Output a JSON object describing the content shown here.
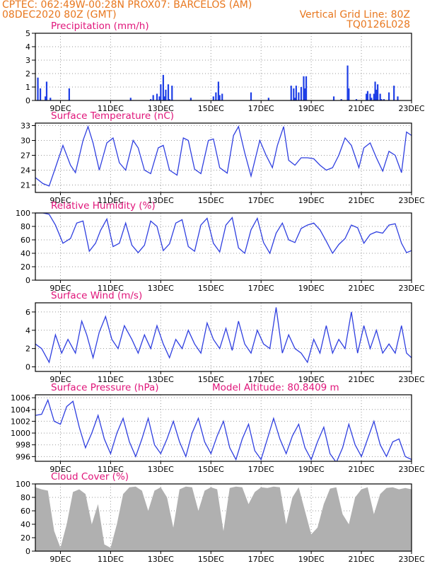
{
  "header": {
    "line1_left": "CPTEC:  062:49W-00:28N  PROX07: BARCELOS (AM)",
    "line2_left": "08DEC2020 80Z (GMT)",
    "line2_right": "Vertical Grid Line: 80Z",
    "line3_right": "TQ0126L028",
    "color": "#e8771e"
  },
  "title_color": "#e0157a",
  "line_color": "#2f3fe0",
  "bar_color": "#1f3fe6",
  "cloud_color": "#b0b0b0",
  "x_tick_labels": [
    "9DEC",
    "11DEC",
    "13DEC",
    "15DEC",
    "17DEC",
    "19DEC",
    "21DEC",
    "23DEC"
  ],
  "chart_data": [
    {
      "type": "bar",
      "title": "Precipitation (mm/h)",
      "ylim": [
        0,
        5
      ],
      "yticks": [
        0,
        1,
        2,
        3,
        4,
        5
      ],
      "x": [
        8.1,
        8.2,
        8.4,
        8.45,
        8.6,
        9.35,
        11.8,
        12.6,
        12.7,
        12.85,
        12.95,
        13.0,
        13.1,
        13.15,
        13.2,
        13.3,
        13.35,
        13.45,
        14.2,
        15.1,
        15.2,
        15.3,
        15.35,
        15.45,
        16.6,
        17.3,
        18.2,
        18.3,
        18.35,
        18.4,
        18.5,
        18.6,
        18.7,
        18.75,
        18.8,
        19.9,
        20.2,
        20.45,
        20.5,
        20.8,
        21.2,
        21.25,
        21.35,
        21.4,
        21.5,
        21.55,
        21.6,
        21.65,
        21.75,
        21.8,
        21.9,
        22.1,
        22.3,
        22.45
      ],
      "values": [
        1.7,
        0.9,
        0.3,
        1.4,
        0.2,
        0.9,
        0.2,
        0.1,
        0.4,
        0.5,
        0.3,
        1.2,
        1.9,
        0.3,
        0.8,
        1.2,
        0.1,
        1.1,
        0.2,
        0.3,
        0.6,
        1.4,
        0.4,
        0.5,
        0.6,
        0.2,
        1.1,
        0.9,
        0.2,
        1.1,
        0.6,
        1.0,
        1.8,
        0.9,
        1.8,
        0.3,
        0.1,
        2.6,
        0.9,
        0.1,
        0.5,
        0.7,
        0.5,
        0.2,
        0.5,
        1.4,
        0.8,
        1.2,
        0.5,
        0.1,
        0.1,
        0.6,
        1.1,
        0.3
      ]
    },
    {
      "type": "line",
      "title": "Surface Temperature (nC)",
      "ylim": [
        19.5,
        33.5
      ],
      "yticks": [
        21,
        24,
        27,
        30,
        33
      ],
      "x": [
        8.0,
        8.3,
        8.55,
        8.8,
        9.1,
        9.4,
        9.6,
        9.9,
        10.1,
        10.3,
        10.55,
        10.85,
        11.1,
        11.35,
        11.6,
        11.9,
        12.1,
        12.35,
        12.6,
        12.9,
        13.1,
        13.35,
        13.65,
        13.9,
        14.1,
        14.35,
        14.6,
        14.9,
        15.1,
        15.35,
        15.65,
        15.9,
        16.1,
        16.35,
        16.6,
        16.95,
        17.2,
        17.45,
        17.65,
        17.9,
        18.1,
        18.35,
        18.6,
        18.85,
        19.1,
        19.35,
        19.6,
        19.85,
        20.1,
        20.35,
        20.6,
        20.9,
        21.1,
        21.35,
        21.6,
        21.85,
        22.1,
        22.35,
        22.6,
        22.8,
        23.0
      ],
      "values": [
        22.5,
        21.3,
        20.8,
        24.5,
        29.0,
        25.0,
        23.5,
        30.0,
        32.8,
        29.5,
        24.0,
        29.5,
        30.5,
        25.5,
        24.0,
        30.0,
        28.5,
        24.0,
        23.3,
        28.5,
        29.0,
        24.0,
        23.0,
        30.5,
        30.0,
        24.2,
        23.3,
        30.0,
        30.3,
        24.5,
        23.4,
        31.0,
        32.8,
        27.5,
        22.8,
        30.0,
        27.0,
        24.5,
        29.0,
        32.8,
        26.0,
        25.0,
        26.5,
        26.5,
        26.3,
        25.0,
        24.0,
        24.5,
        27.0,
        30.5,
        29.0,
        24.5,
        28.5,
        29.5,
        26.5,
        23.8,
        27.8,
        27.0,
        23.5,
        31.7,
        31.0
      ]
    },
    {
      "type": "line",
      "title": "Relative Humidity (%)",
      "ylim": [
        0,
        100
      ],
      "yticks": [
        0,
        20,
        40,
        60,
        80,
        100
      ],
      "x": [
        8.0,
        8.3,
        8.55,
        8.8,
        9.1,
        9.4,
        9.65,
        9.9,
        10.15,
        10.4,
        10.6,
        10.85,
        11.1,
        11.35,
        11.6,
        11.85,
        12.1,
        12.35,
        12.6,
        12.85,
        13.1,
        13.35,
        13.6,
        13.85,
        14.1,
        14.35,
        14.6,
        14.85,
        15.1,
        15.35,
        15.6,
        15.85,
        16.1,
        16.35,
        16.6,
        16.85,
        17.1,
        17.35,
        17.6,
        17.85,
        18.1,
        18.35,
        18.6,
        18.85,
        19.1,
        19.35,
        19.6,
        19.85,
        20.1,
        20.35,
        20.6,
        20.85,
        21.1,
        21.35,
        21.6,
        21.85,
        22.1,
        22.35,
        22.6,
        22.8,
        23.0
      ],
      "values": [
        100.0,
        100.0,
        98.0,
        82.0,
        55.0,
        62.0,
        85.0,
        88.0,
        43.0,
        55.0,
        74.0,
        91.0,
        50.0,
        55.0,
        85.0,
        52.0,
        41.0,
        52.0,
        88.0,
        80.0,
        44.0,
        54.0,
        85.0,
        90.0,
        50.0,
        43.0,
        82.0,
        92.0,
        55.0,
        42.0,
        82.0,
        93.0,
        48.0,
        40.0,
        75.0,
        92.0,
        56.0,
        40.0,
        70.0,
        85.0,
        60.0,
        56.0,
        77.0,
        82.0,
        85.0,
        75.0,
        58.0,
        40.0,
        53.0,
        62.0,
        82.0,
        78.0,
        55.0,
        68.0,
        72.0,
        70.0,
        82.0,
        84.0,
        55.0,
        41.0,
        44.0
      ]
    },
    {
      "type": "line",
      "title": "Surface Wind (m/s)",
      "ylim": [
        -0.5,
        7.0
      ],
      "yticks": [
        0,
        2,
        4,
        6
      ],
      "x": [
        8.0,
        8.25,
        8.55,
        8.8,
        9.05,
        9.3,
        9.6,
        9.85,
        10.05,
        10.3,
        10.55,
        10.8,
        11.05,
        11.3,
        11.55,
        11.85,
        12.1,
        12.35,
        12.6,
        12.85,
        13.1,
        13.35,
        13.6,
        13.85,
        14.1,
        14.35,
        14.6,
        14.85,
        15.1,
        15.35,
        15.6,
        15.85,
        16.1,
        16.35,
        16.6,
        16.85,
        17.1,
        17.35,
        17.6,
        17.85,
        18.1,
        18.35,
        18.6,
        18.85,
        19.1,
        19.35,
        19.6,
        19.85,
        20.1,
        20.35,
        20.6,
        20.85,
        21.1,
        21.35,
        21.6,
        21.85,
        22.1,
        22.35,
        22.6,
        22.8,
        23.0
      ],
      "values": [
        2.5,
        2.0,
        0.5,
        3.5,
        1.5,
        3.0,
        1.5,
        5.0,
        3.5,
        1.0,
        3.8,
        5.5,
        3.0,
        2.0,
        4.5,
        3.0,
        1.5,
        3.5,
        2.0,
        4.5,
        2.5,
        1.0,
        3.0,
        2.0,
        4.0,
        2.5,
        1.5,
        4.8,
        3.0,
        2.0,
        4.2,
        1.8,
        5.0,
        2.5,
        1.5,
        4.0,
        2.5,
        2.0,
        6.5,
        1.5,
        3.5,
        2.0,
        1.5,
        0.5,
        3.0,
        1.5,
        4.5,
        1.5,
        3.0,
        2.0,
        6.0,
        1.5,
        4.5,
        2.0,
        4.0,
        1.5,
        2.5,
        1.5,
        4.5,
        1.5,
        1.0
      ]
    },
    {
      "type": "line",
      "title": "Surface Pressure (hPa)",
      "subtitle": "Model Altitude: 80.8409 m",
      "ylim": [
        995.2,
        1006.5
      ],
      "yticks": [
        996,
        998,
        1000,
        1002,
        1004,
        1006
      ],
      "x": [
        8.0,
        8.25,
        8.5,
        8.75,
        9.0,
        9.25,
        9.5,
        9.75,
        10.0,
        10.25,
        10.5,
        10.75,
        11.0,
        11.25,
        11.5,
        11.75,
        12.0,
        12.25,
        12.5,
        12.75,
        13.0,
        13.25,
        13.5,
        13.75,
        14.0,
        14.25,
        14.5,
        14.75,
        15.0,
        15.25,
        15.5,
        15.75,
        16.0,
        16.25,
        16.5,
        16.75,
        17.0,
        17.25,
        17.5,
        17.75,
        18.0,
        18.25,
        18.5,
        18.75,
        19.0,
        19.25,
        19.5,
        19.75,
        20.0,
        20.25,
        20.5,
        20.75,
        21.0,
        21.25,
        21.5,
        21.75,
        22.0,
        22.25,
        22.5,
        22.75,
        23.0
      ],
      "values": [
        1003.0,
        1003.2,
        1005.6,
        1002.0,
        1001.5,
        1004.5,
        1005.4,
        1001.0,
        997.5,
        1000.0,
        1003.0,
        999.0,
        996.5,
        1000.0,
        1002.5,
        998.5,
        996.0,
        999.0,
        1002.5,
        998.0,
        996.5,
        999.0,
        1002.0,
        998.5,
        996.0,
        1000.0,
        1002.5,
        998.5,
        996.5,
        999.5,
        1002.0,
        997.5,
        995.5,
        999.0,
        1001.5,
        997.0,
        995.5,
        999.0,
        1002.5,
        999.0,
        996.5,
        999.5,
        1001.5,
        997.5,
        995.5,
        998.5,
        1001.0,
        996.5,
        995.0,
        997.5,
        1001.5,
        998.0,
        996.0,
        999.0,
        1002.0,
        998.0,
        996.0,
        998.5,
        999.0,
        996.0,
        995.5
      ]
    },
    {
      "type": "area",
      "title": "Cloud Cover (%)",
      "ylim": [
        0,
        100
      ],
      "yticks": [
        0,
        20,
        40,
        60,
        80,
        100
      ],
      "x": [
        8.0,
        8.25,
        8.5,
        8.75,
        9.0,
        9.25,
        9.5,
        9.75,
        10.0,
        10.25,
        10.5,
        10.75,
        11.0,
        11.25,
        11.5,
        11.75,
        12.0,
        12.25,
        12.5,
        12.75,
        13.0,
        13.25,
        13.5,
        13.75,
        14.0,
        14.25,
        14.5,
        14.75,
        15.0,
        15.25,
        15.5,
        15.75,
        16.0,
        16.25,
        16.5,
        16.75,
        17.0,
        17.25,
        17.5,
        17.75,
        18.0,
        18.25,
        18.5,
        18.75,
        19.0,
        19.25,
        19.5,
        19.75,
        20.0,
        20.25,
        20.5,
        20.75,
        21.0,
        21.25,
        21.5,
        21.75,
        22.0,
        22.25,
        22.5,
        22.75,
        23.0
      ],
      "values": [
        95,
        92,
        90,
        30,
        5,
        40,
        88,
        92,
        85,
        40,
        70,
        10,
        5,
        40,
        85,
        95,
        96,
        90,
        60,
        90,
        95,
        80,
        35,
        92,
        96,
        95,
        60,
        90,
        95,
        92,
        30,
        94,
        96,
        95,
        70,
        88,
        95,
        94,
        96,
        95,
        40,
        80,
        95,
        60,
        25,
        35,
        70,
        93,
        95,
        55,
        40,
        80,
        92,
        95,
        55,
        85,
        94,
        95,
        92,
        94,
        92
      ]
    }
  ]
}
